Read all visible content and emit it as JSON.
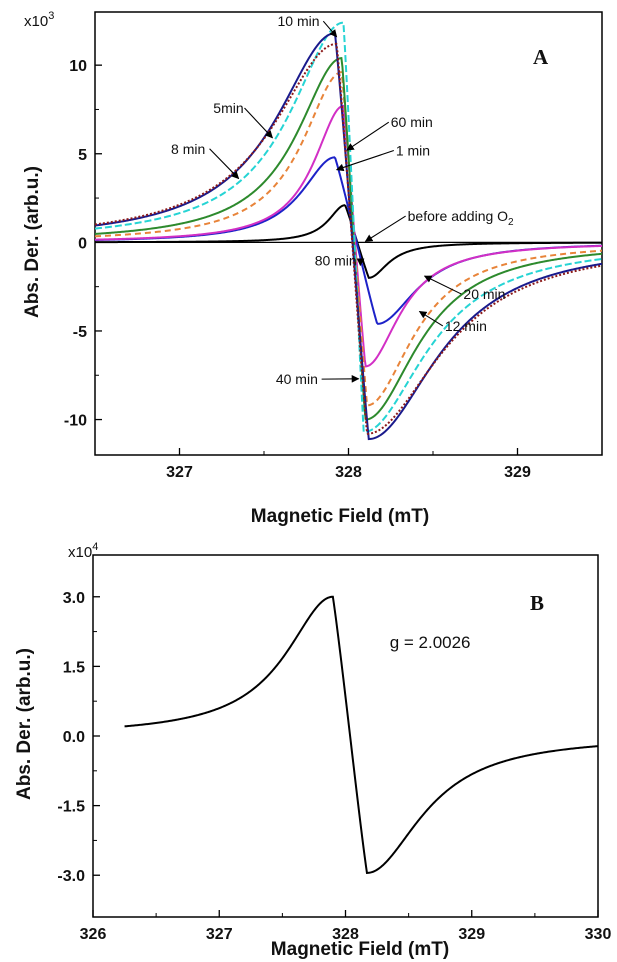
{
  "chart_data": [
    {
      "type": "line",
      "panel_label": "A",
      "xlabel": "Magnetic Field (mT)",
      "ylabel": "Abs. Der. (arb.u.)",
      "y_multiplier": "x10",
      "y_multiplier_exp": "3",
      "xlim": [
        326.5,
        329.5
      ],
      "ylim": [
        -12,
        13
      ],
      "x_ticks": [
        327,
        328,
        329
      ],
      "y_ticks": [
        -10,
        -5,
        0,
        5,
        10
      ],
      "grid": false,
      "legend": "none",
      "series": [
        {
          "color": "#000000",
          "peak_x": 327.98,
          "peak_y": 2.1,
          "trough_x": 328.12,
          "trough_y": -2.0,
          "width": 0.12,
          "dash": ""
        },
        {
          "color": "#1d22c8",
          "peak_x": 327.92,
          "peak_y": 4.8,
          "trough_x": 328.17,
          "trough_y": -4.6,
          "width": 0.24,
          "dash": ""
        },
        {
          "color": "#d22fc5",
          "peak_x": 327.97,
          "peak_y": 7.7,
          "trough_x": 328.1,
          "trough_y": -7.0,
          "width": 0.21,
          "dash": ""
        },
        {
          "color": "#e8843a",
          "peak_x": 327.96,
          "peak_y": 9.6,
          "trough_x": 328.11,
          "trough_y": -9.2,
          "width": 0.28,
          "dash": "6,4"
        },
        {
          "color": "#2d8a2d",
          "peak_x": 327.96,
          "peak_y": 10.4,
          "trough_x": 328.1,
          "trough_y": -10.0,
          "width": 0.32,
          "dash": ""
        },
        {
          "color": "#26d4d4",
          "peak_x": 327.97,
          "peak_y": 12.4,
          "trough_x": 328.09,
          "trough_y": -10.7,
          "width": 0.38,
          "dash": "7,3"
        },
        {
          "color": "#1a1a8c",
          "peak_x": 327.92,
          "peak_y": 11.8,
          "trough_x": 328.12,
          "trough_y": -11.1,
          "width": 0.42,
          "dash": ""
        },
        {
          "color": "#8b1a1a",
          "peak_x": 327.93,
          "peak_y": 11.2,
          "trough_x": 328.11,
          "trough_y": -10.8,
          "width": 0.45,
          "dash": "2,2"
        }
      ],
      "annotations": [
        {
          "text": "10 min",
          "x": 327.58,
          "y": 12.2,
          "arrow_to": [
            327.93,
            11.6
          ]
        },
        {
          "text": "5min",
          "x": 327.2,
          "y": 7.3,
          "arrow_to": [
            327.55,
            5.9
          ]
        },
        {
          "text": "60 min",
          "x": 328.25,
          "y": 6.5,
          "arrow_to": [
            327.99,
            5.2
          ]
        },
        {
          "text": "8 min",
          "x": 326.95,
          "y": 5.0,
          "arrow_to": [
            327.35,
            3.6
          ]
        },
        {
          "text": "1 min",
          "x": 328.28,
          "y": 4.9,
          "arrow_to": [
            327.93,
            4.1
          ]
        },
        {
          "text": "before adding O",
          "sub": "2",
          "x": 328.35,
          "y": 1.2,
          "arrow_to": [
            328.1,
            0.05
          ]
        },
        {
          "text": "80 min",
          "x": 327.8,
          "y": -1.3,
          "arrow_to": [
            328.07,
            -1.3
          ]
        },
        {
          "text": "20 min",
          "x": 328.68,
          "y": -3.2,
          "arrow_to": [
            328.45,
            -1.9
          ]
        },
        {
          "text": "12 min",
          "x": 328.57,
          "y": -5.0,
          "arrow_to": [
            328.42,
            -3.9
          ]
        },
        {
          "text": "40 min",
          "x": 327.57,
          "y": -8.0,
          "arrow_to": [
            328.06,
            -7.7
          ]
        }
      ]
    },
    {
      "type": "line",
      "panel_label": "B",
      "xlabel": "Magnetic Field (mT)",
      "ylabel": "Abs. Der. (arb.u.)",
      "y_multiplier": "x10",
      "y_multiplier_exp": "4",
      "xlim": [
        326,
        330
      ],
      "ylim": [
        -3.9,
        3.9
      ],
      "x_ticks": [
        326,
        327,
        328,
        329,
        330
      ],
      "y_ticks": [
        -3.0,
        -1.5,
        0.0,
        1.5,
        3.0
      ],
      "y_tick_labels": [
        "-3.0",
        "-1.5",
        "0.0",
        "1.5",
        "3.0"
      ],
      "grid": false,
      "legend": "none",
      "series": [
        {
          "color": "#000000",
          "x_start": 326.25,
          "x_end": 330.0,
          "peak_x": 327.9,
          "peak_y": 3.0,
          "trough_x": 328.17,
          "trough_y": -2.95,
          "width": 0.45,
          "dash": ""
        }
      ],
      "annotations": [
        {
          "text": "g = 2.0026",
          "x": 328.35,
          "y": 1.9
        }
      ]
    }
  ]
}
